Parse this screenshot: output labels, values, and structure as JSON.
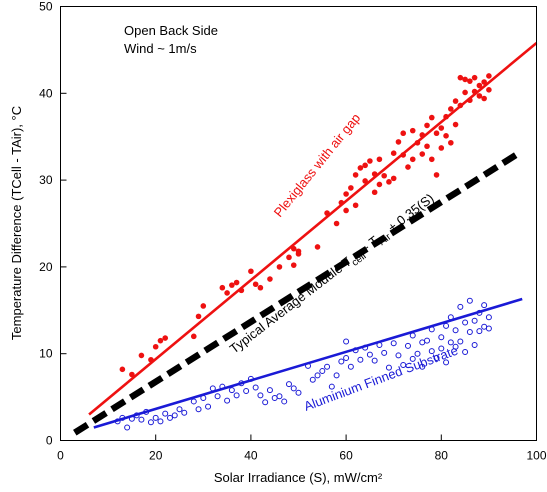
{
  "chart_data": {
    "type": "scatter",
    "xlabel": "Solar Irradiance (S), mW/cm²",
    "ylabel": "Temperature Difference (TCell - TAir), °C",
    "xlim": [
      0,
      100
    ],
    "ylim": [
      0,
      50
    ],
    "xticks": [
      0,
      20,
      40,
      60,
      80,
      100
    ],
    "yticks": [
      0,
      10,
      20,
      30,
      40,
      50
    ],
    "grid": false,
    "annotations": [
      {
        "text": "Open Back Side"
      },
      {
        "text": "Wind ~ 1m/s"
      }
    ],
    "colors": {
      "plexiglass": "#ee1111",
      "typical": "#000000",
      "aluminium": "#1a1ad6"
    },
    "fit_lines": [
      {
        "key": "plexiglass",
        "label": "Plexiglass with air gap",
        "x": [
          6,
          100
        ],
        "y": [
          3.0,
          45.8
        ],
        "style": "solid"
      },
      {
        "key": "typical",
        "label_parts": [
          "Typical Average Module T",
          "cell",
          " - T",
          "Air",
          " + 0.35(S)"
        ],
        "x": [
          3,
          96
        ],
        "y": [
          0.9,
          33.0
        ],
        "style": "dashed"
      },
      {
        "key": "aluminium",
        "label": "Aluminium Finned Substrate",
        "x": [
          7,
          97
        ],
        "y": [
          1.5,
          16.3
        ],
        "style": "solid"
      }
    ],
    "series": [
      {
        "key": "plexiglass",
        "marker": "filled-circle",
        "points": [
          [
            13,
            8.2
          ],
          [
            15,
            7.6
          ],
          [
            17,
            9.8
          ],
          [
            19,
            9.3
          ],
          [
            20,
            10.8
          ],
          [
            21,
            11.5
          ],
          [
            22,
            11.8
          ],
          [
            28,
            12
          ],
          [
            29,
            14.3
          ],
          [
            30,
            15.5
          ],
          [
            34,
            17.6
          ],
          [
            35,
            17
          ],
          [
            36,
            17.9
          ],
          [
            37,
            18.2
          ],
          [
            38,
            17.3
          ],
          [
            40,
            19.5
          ],
          [
            41,
            18
          ],
          [
            42,
            17.6
          ],
          [
            44,
            18.6
          ],
          [
            46,
            20
          ],
          [
            48,
            21.1
          ],
          [
            49,
            22.1
          ],
          [
            49,
            20.2
          ],
          [
            50,
            21.8
          ],
          [
            50,
            21.5
          ],
          [
            54,
            22.3
          ],
          [
            56,
            26.2
          ],
          [
            58,
            25
          ],
          [
            59,
            27.4
          ],
          [
            60,
            26.5
          ],
          [
            60,
            28.4
          ],
          [
            61,
            29.1
          ],
          [
            62,
            30.6
          ],
          [
            62,
            27.1
          ],
          [
            63,
            31.4
          ],
          [
            64,
            31.7
          ],
          [
            64,
            29.9
          ],
          [
            65,
            32.2
          ],
          [
            66,
            30.7
          ],
          [
            66,
            28.6
          ],
          [
            67,
            32.4
          ],
          [
            67,
            29.5
          ],
          [
            68,
            30.5
          ],
          [
            69,
            29.8
          ],
          [
            70,
            33.1
          ],
          [
            70,
            30.2
          ],
          [
            71,
            34.4
          ],
          [
            72,
            32.9
          ],
          [
            72,
            35.4
          ],
          [
            73,
            31.5
          ],
          [
            74,
            35.7
          ],
          [
            74,
            32.4
          ],
          [
            75,
            34.3
          ],
          [
            76,
            33
          ],
          [
            76,
            35.2
          ],
          [
            77,
            36.3
          ],
          [
            77,
            33.9
          ],
          [
            78,
            37.2
          ],
          [
            78,
            32.4
          ],
          [
            79,
            35.4
          ],
          [
            79,
            30.6
          ],
          [
            80,
            36
          ],
          [
            80,
            33.7
          ],
          [
            81,
            37.3
          ],
          [
            81,
            35.1
          ],
          [
            82,
            38.2
          ],
          [
            82,
            34.3
          ],
          [
            83,
            39.1
          ],
          [
            83,
            36.4
          ],
          [
            84,
            41.8
          ],
          [
            84,
            38.6
          ],
          [
            85,
            40.1
          ],
          [
            85,
            41.6
          ],
          [
            86,
            41.4
          ],
          [
            86,
            39.2
          ],
          [
            87,
            41.8
          ],
          [
            87,
            40.2
          ],
          [
            88,
            40.9
          ],
          [
            88,
            39.7
          ],
          [
            89,
            41.3
          ],
          [
            89,
            39.4
          ],
          [
            90,
            42
          ],
          [
            90,
            40.4
          ]
        ]
      },
      {
        "key": "aluminium",
        "marker": "open-circle",
        "points": [
          [
            12,
            2.2
          ],
          [
            13,
            2.6
          ],
          [
            14,
            1.5
          ],
          [
            15,
            2.5
          ],
          [
            16,
            2.9
          ],
          [
            17,
            2.4
          ],
          [
            18,
            3.3
          ],
          [
            19,
            2.1
          ],
          [
            20,
            2.6
          ],
          [
            21,
            2.2
          ],
          [
            22,
            3.1
          ],
          [
            23,
            2.6
          ],
          [
            24,
            2.9
          ],
          [
            25,
            3.6
          ],
          [
            26,
            3.2
          ],
          [
            28,
            4.5
          ],
          [
            29,
            3.6
          ],
          [
            30,
            4.9
          ],
          [
            31,
            3.9
          ],
          [
            32,
            6
          ],
          [
            33,
            5.1
          ],
          [
            34,
            6.2
          ],
          [
            35,
            4.6
          ],
          [
            36,
            5.8
          ],
          [
            37,
            5.2
          ],
          [
            38,
            6.6
          ],
          [
            39,
            5.7
          ],
          [
            40,
            7.1
          ],
          [
            41,
            6.1
          ],
          [
            42,
            5.2
          ],
          [
            43,
            4.4
          ],
          [
            44,
            5.8
          ],
          [
            45,
            4.9
          ],
          [
            46,
            5.1
          ],
          [
            47,
            4.5
          ],
          [
            48,
            6.5
          ],
          [
            49,
            6
          ],
          [
            50,
            5.5
          ],
          [
            52,
            8.6
          ],
          [
            53,
            7
          ],
          [
            54,
            7.5
          ],
          [
            55,
            8
          ],
          [
            56,
            8.5
          ],
          [
            57,
            6.2
          ],
          [
            58,
            7.5
          ],
          [
            59,
            9.1
          ],
          [
            60,
            9.5
          ],
          [
            60,
            11.4
          ],
          [
            61,
            8.5
          ],
          [
            62,
            10.4
          ],
          [
            63,
            9.3
          ],
          [
            64,
            10.7
          ],
          [
            65,
            9.9
          ],
          [
            66,
            9.2
          ],
          [
            67,
            11
          ],
          [
            68,
            10.1
          ],
          [
            69,
            8.4
          ],
          [
            70,
            11.2
          ],
          [
            71,
            9.8
          ],
          [
            72,
            8.7
          ],
          [
            73,
            10.9
          ],
          [
            74,
            12.1
          ],
          [
            74,
            9.4
          ],
          [
            75,
            10
          ],
          [
            76,
            11.3
          ],
          [
            76,
            8.5
          ],
          [
            77,
            11.5
          ],
          [
            78,
            10.3
          ],
          [
            78,
            12.8
          ],
          [
            79,
            9.5
          ],
          [
            80,
            11.9
          ],
          [
            80,
            10.6
          ],
          [
            81,
            13.2
          ],
          [
            81,
            9
          ],
          [
            82,
            11.3
          ],
          [
            82,
            14.2
          ],
          [
            83,
            10.8
          ],
          [
            83,
            12.7
          ],
          [
            84,
            15.4
          ],
          [
            84,
            11.4
          ],
          [
            85,
            13.6
          ],
          [
            85,
            10.2
          ],
          [
            86,
            16.1
          ],
          [
            86,
            12.5
          ],
          [
            87,
            13.8
          ],
          [
            87,
            11
          ],
          [
            88,
            14.7
          ],
          [
            88,
            12.6
          ],
          [
            89,
            15.6
          ],
          [
            89,
            13.1
          ],
          [
            90,
            14.2
          ],
          [
            90,
            12.9
          ]
        ]
      }
    ]
  }
}
